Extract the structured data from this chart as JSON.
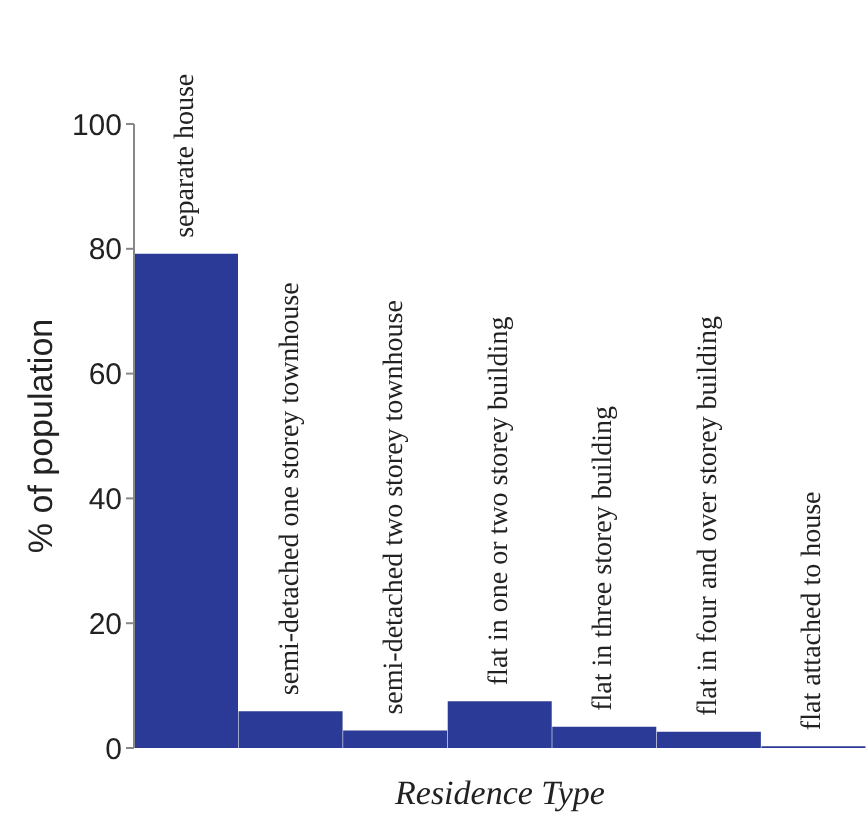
{
  "chart_data": {
    "type": "bar",
    "xlabel": "Residence Type",
    "ylabel": "% of population",
    "categories": [
      "separate house",
      "semi-detached one storey townhouse",
      "semi-detached two storey townhouse",
      "flat in one or two storey building",
      "flat in three storey building",
      "flat in four and over storey building",
      "flat attached to house"
    ],
    "values": [
      79.2,
      5.9,
      2.8,
      7.5,
      3.4,
      2.6,
      0.3
    ],
    "color": "#2b3a96",
    "ylim": [
      0,
      100
    ],
    "yticks": [
      0,
      20,
      40,
      60,
      80,
      100
    ],
    "grid": false,
    "legend": false
  }
}
